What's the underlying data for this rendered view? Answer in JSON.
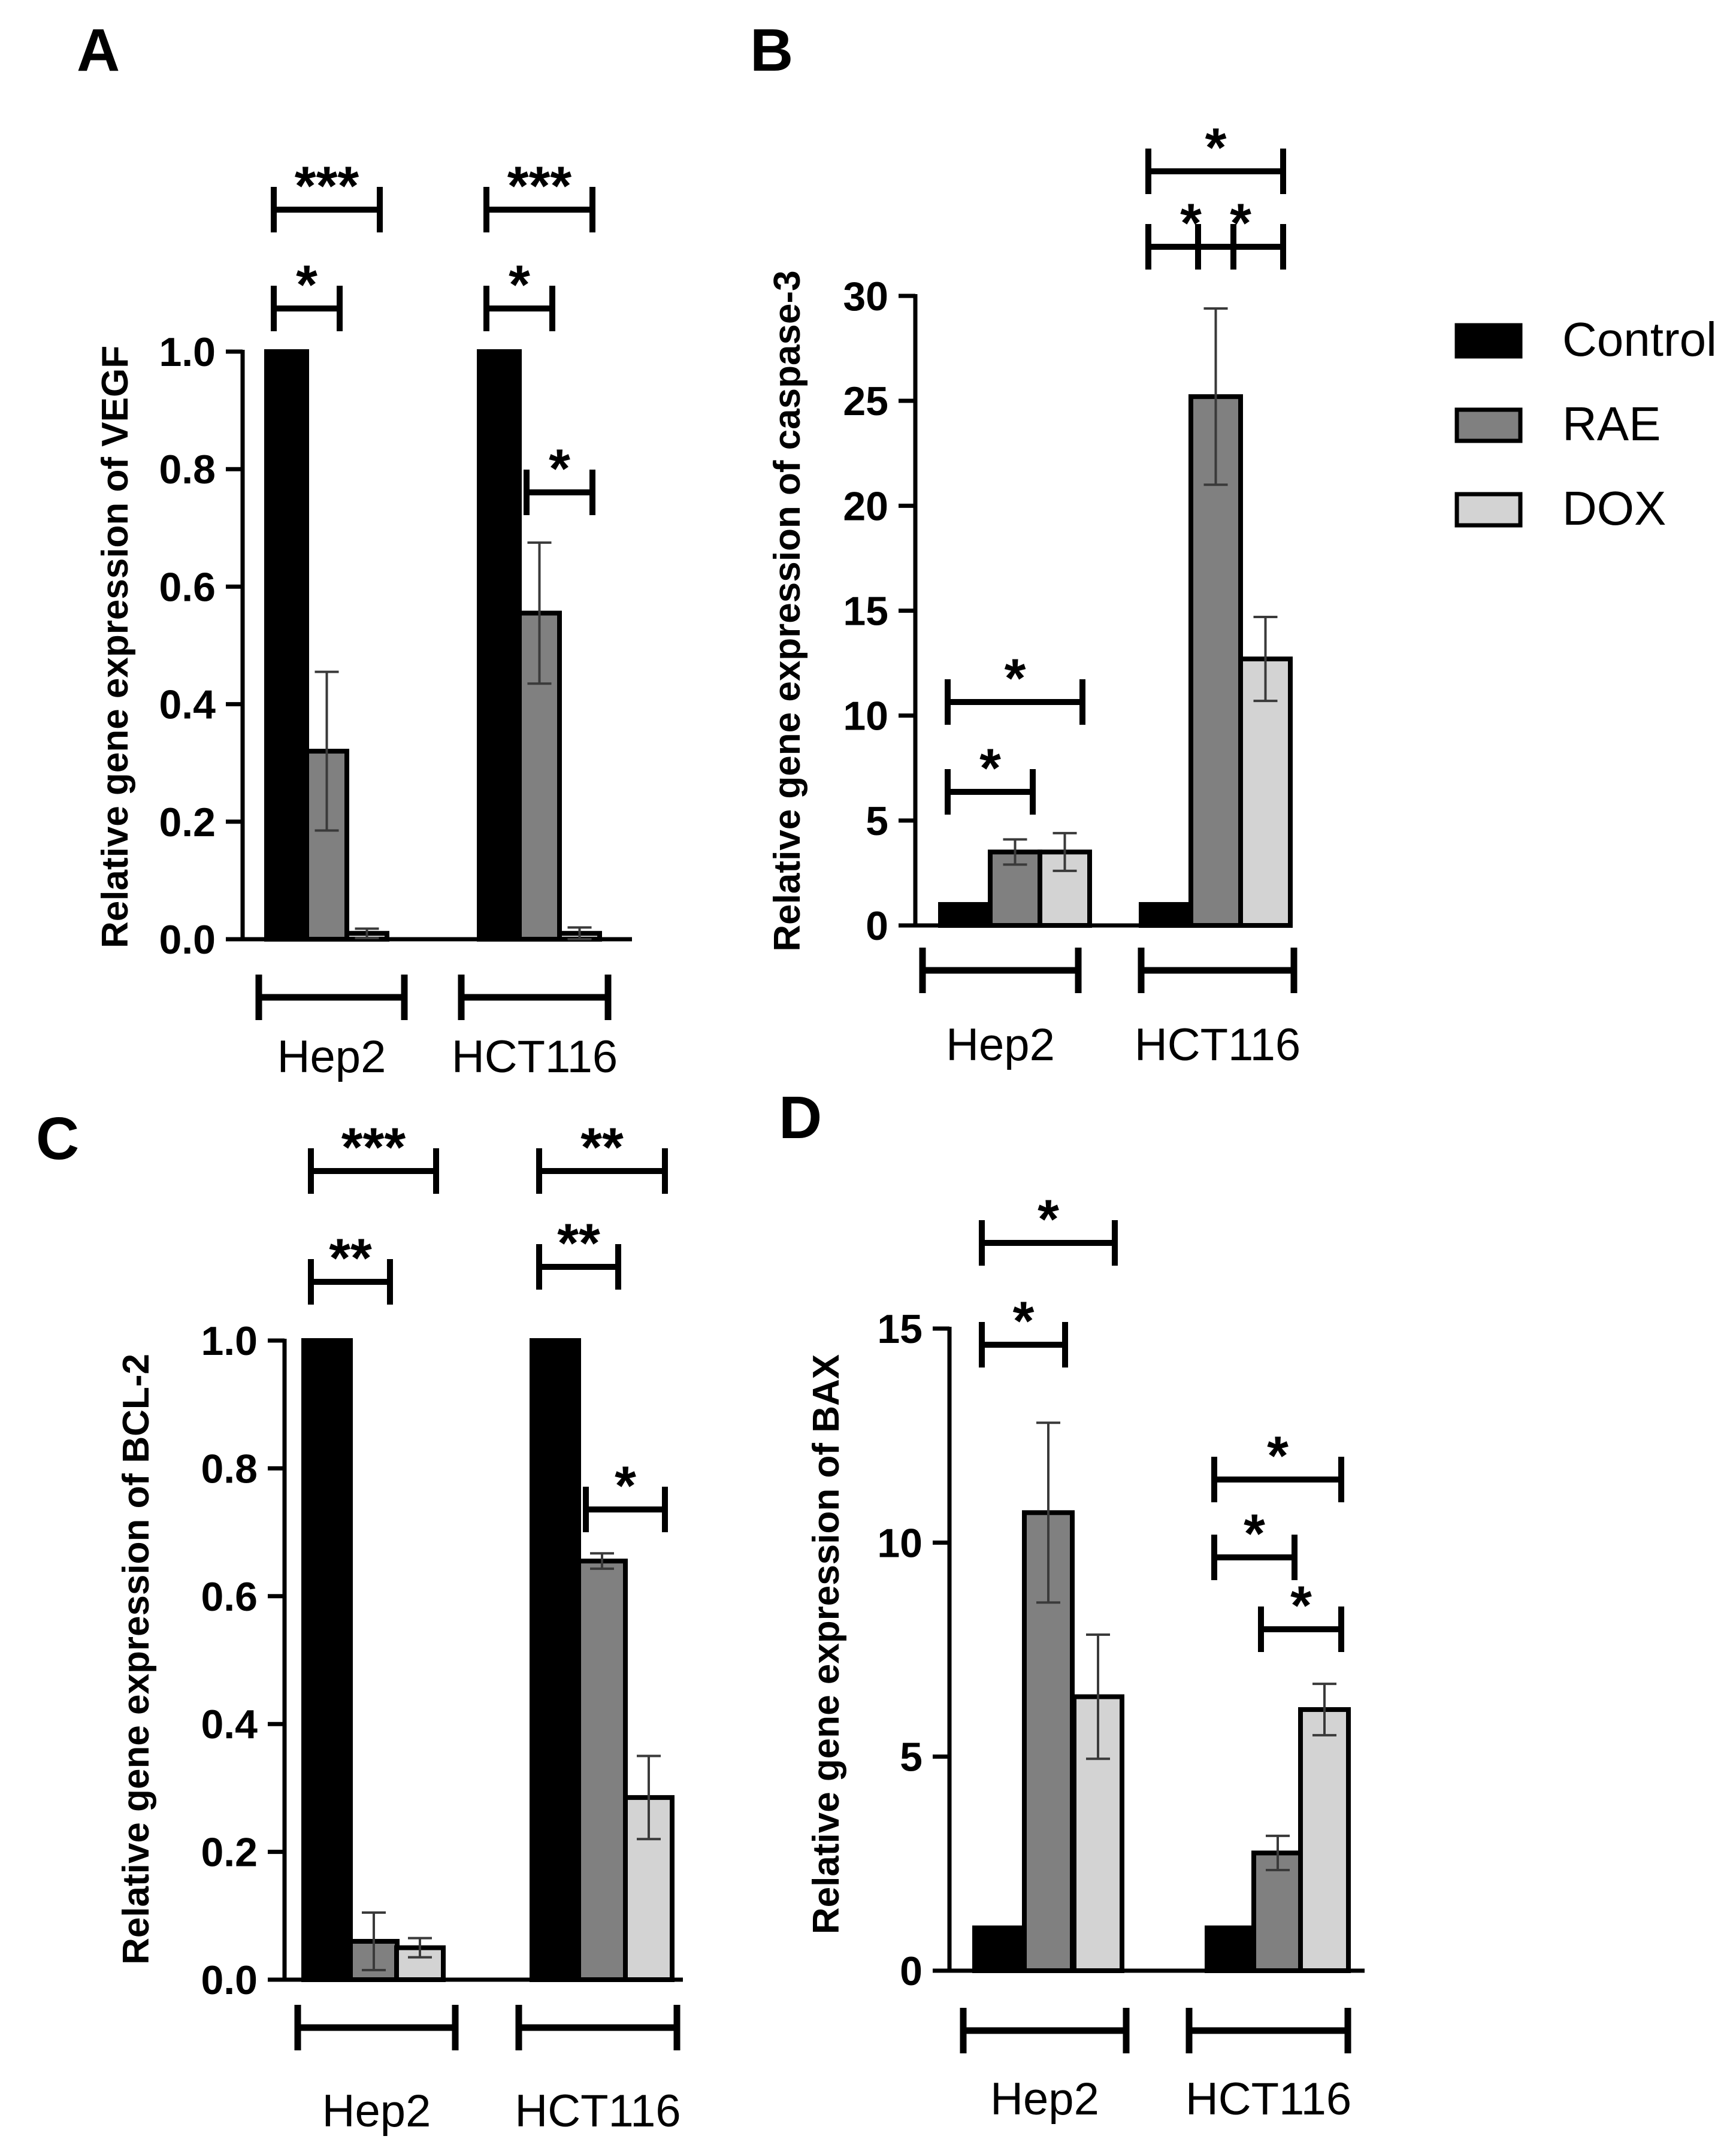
{
  "colors": {
    "control": "#000000",
    "rae": "#808080",
    "dox": "#d3d3d3",
    "axis": "#000000"
  },
  "legend": {
    "items": [
      {
        "key": "control",
        "label": "Control"
      },
      {
        "key": "rae",
        "label": "RAE"
      },
      {
        "key": "dox",
        "label": "DOX"
      }
    ]
  },
  "chart_data": [
    {
      "panel": "A",
      "type": "bar",
      "ylabel": "Relative gene expression of VEGF",
      "ylim": [
        0,
        1.0
      ],
      "ticks": [
        "0.0",
        "0.2",
        "0.4",
        "0.6",
        "0.8",
        "1.0"
      ],
      "tick_values": [
        0,
        0.2,
        0.4,
        0.6,
        0.8,
        1.0
      ],
      "categories": [
        "Hep2",
        "HCT116"
      ],
      "series": [
        {
          "name": "Control",
          "values": [
            1.0,
            1.0
          ],
          "errors": [
            0,
            0
          ]
        },
        {
          "name": "RAE",
          "values": [
            0.32,
            0.555
          ],
          "errors": [
            0.135,
            0.12
          ]
        },
        {
          "name": "DOX",
          "values": [
            0.01,
            0.01
          ],
          "errors": [
            0.008,
            0.01
          ]
        }
      ],
      "significance": [
        {
          "group": 0,
          "from": 0,
          "to": 2,
          "label": "***"
        },
        {
          "group": 0,
          "from": 0,
          "to": 1,
          "label": "*"
        },
        {
          "group": 1,
          "from": 0,
          "to": 2,
          "label": "***"
        },
        {
          "group": 1,
          "from": 0,
          "to": 1,
          "label": "*"
        },
        {
          "group": 1,
          "from": 1,
          "to": 2,
          "label": "*"
        }
      ]
    },
    {
      "panel": "B",
      "type": "bar",
      "ylabel": "Relative gene expression of caspase-3",
      "ylim": [
        0,
        30
      ],
      "ticks": [
        "0",
        "5",
        "10",
        "15",
        "20",
        "25",
        "30"
      ],
      "tick_values": [
        0,
        5,
        10,
        15,
        20,
        25,
        30
      ],
      "categories": [
        "Hep2",
        "HCT116"
      ],
      "series": [
        {
          "name": "Control",
          "values": [
            1.0,
            1.0
          ],
          "errors": [
            0,
            0
          ]
        },
        {
          "name": "RAE",
          "values": [
            3.5,
            25.2
          ],
          "errors": [
            0.6,
            4.2
          ]
        },
        {
          "name": "DOX",
          "values": [
            3.5,
            12.7
          ],
          "errors": [
            0.9,
            2.0
          ]
        }
      ],
      "significance": [
        {
          "group": 0,
          "from": 0,
          "to": 2,
          "label": "*"
        },
        {
          "group": 0,
          "from": 0,
          "to": 1,
          "label": "*"
        },
        {
          "group": 1,
          "from": 0,
          "to": 2,
          "label": "*"
        },
        {
          "group": 1,
          "from": 0,
          "to": 1,
          "label": "*"
        },
        {
          "group": 1,
          "from": 1,
          "to": 2,
          "label": "*"
        }
      ]
    },
    {
      "panel": "C",
      "type": "bar",
      "ylabel": "Relative gene expression of BCL-2",
      "ylim": [
        0,
        1.0
      ],
      "ticks": [
        "0.0",
        "0.2",
        "0.4",
        "0.6",
        "0.8",
        "1.0"
      ],
      "tick_values": [
        0,
        0.2,
        0.4,
        0.6,
        0.8,
        1.0
      ],
      "categories": [
        "Hep2",
        "HCT116"
      ],
      "series": [
        {
          "name": "Control",
          "values": [
            1.0,
            1.0
          ],
          "errors": [
            0,
            0
          ]
        },
        {
          "name": "RAE",
          "values": [
            0.06,
            0.655
          ],
          "errors": [
            0.045,
            0.012
          ]
        },
        {
          "name": "DOX",
          "values": [
            0.05,
            0.285
          ],
          "errors": [
            0.015,
            0.065
          ]
        }
      ],
      "significance": [
        {
          "group": 0,
          "from": 0,
          "to": 2,
          "label": "***"
        },
        {
          "group": 0,
          "from": 0,
          "to": 1,
          "label": "**"
        },
        {
          "group": 1,
          "from": 0,
          "to": 2,
          "label": "**"
        },
        {
          "group": 1,
          "from": 0,
          "to": 1,
          "label": "**"
        },
        {
          "group": 1,
          "from": 1,
          "to": 2,
          "label": "*"
        }
      ]
    },
    {
      "panel": "D",
      "type": "bar",
      "ylabel": "Relative gene expression of BAX",
      "ylim": [
        0,
        15
      ],
      "ticks": [
        "0",
        "5",
        "10",
        "15"
      ],
      "tick_values": [
        0,
        5,
        10,
        15
      ],
      "categories": [
        "Hep2",
        "HCT116"
      ],
      "series": [
        {
          "name": "Control",
          "values": [
            1.0,
            1.0
          ],
          "errors": [
            0,
            0
          ]
        },
        {
          "name": "RAE",
          "values": [
            10.7,
            2.75
          ],
          "errors": [
            2.1,
            0.4
          ]
        },
        {
          "name": "DOX",
          "values": [
            6.4,
            6.1
          ],
          "errors": [
            1.45,
            0.6
          ]
        }
      ],
      "significance": [
        {
          "group": 0,
          "from": 0,
          "to": 2,
          "label": "*"
        },
        {
          "group": 0,
          "from": 0,
          "to": 1,
          "label": "*"
        },
        {
          "group": 1,
          "from": 0,
          "to": 2,
          "label": "*"
        },
        {
          "group": 1,
          "from": 0,
          "to": 1,
          "label": "*"
        },
        {
          "group": 1,
          "from": 1,
          "to": 2,
          "label": "*"
        }
      ]
    }
  ]
}
